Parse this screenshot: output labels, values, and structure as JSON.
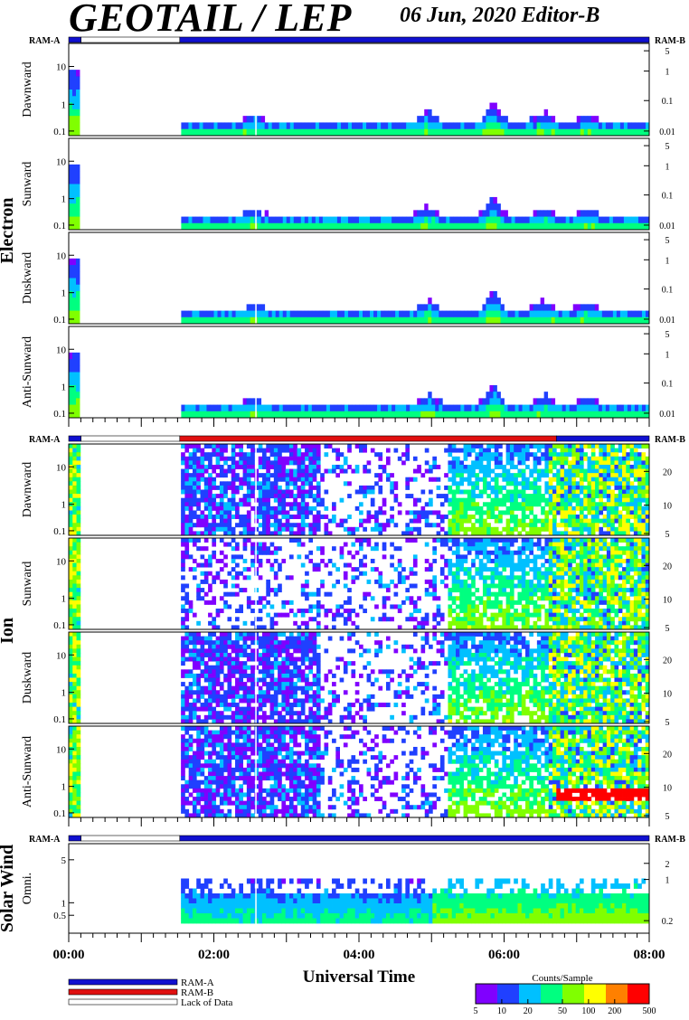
{
  "header": {
    "title": "GEOTAIL / LEP",
    "subtitle": "06 Jun, 2020   Editor-B"
  },
  "labels": {
    "ram_a": "RAM-A",
    "ram_b": "RAM-B",
    "electron": "Electron",
    "ion": "Ion",
    "solar_wind": "Solar Wind",
    "xlabel": "Universal Time",
    "colorbar_title": "Counts/Sample"
  },
  "legend": [
    {
      "label": "RAM-A",
      "color": "#1010d0"
    },
    {
      "label": "RAM-B",
      "color": "#e01010"
    },
    {
      "label": "Lack of Data",
      "color": "#ffffff"
    }
  ],
  "colorbar": {
    "ticks": [
      "5",
      "10",
      "20",
      "50",
      "100",
      "200",
      "500"
    ],
    "colors": [
      "#8000ff",
      "#2040ff",
      "#00c0ff",
      "#00ff80",
      "#80ff00",
      "#ffff00",
      "#ff8000",
      "#ff0000"
    ]
  },
  "chart_data": {
    "type": "heatmap",
    "x_ticks": [
      "00:00",
      "02:00",
      "04:00",
      "06:00",
      "08:00"
    ],
    "x_range_hours": [
      0,
      8
    ],
    "groups": [
      {
        "name": "Electron",
        "status_bar": [
          {
            "start": 0.0,
            "end": 0.17,
            "state": "RAM-A"
          },
          {
            "start": 0.17,
            "end": 1.53,
            "state": "Lack of Data"
          },
          {
            "start": 1.53,
            "end": 8.0,
            "state": "RAM-A"
          }
        ],
        "panels": [
          {
            "name": "Dawnward",
            "left_ticks": [
              "10",
              "1",
              "0.1"
            ],
            "right_ticks": [
              "5",
              "1",
              "0.1",
              "0.01"
            ]
          },
          {
            "name": "Sunward",
            "left_ticks": [
              "10",
              "1",
              "0.1"
            ],
            "right_ticks": [
              "5",
              "1",
              "0.1",
              "0.01"
            ]
          },
          {
            "name": "Duskward",
            "left_ticks": [
              "10",
              "1",
              "0.1"
            ],
            "right_ticks": [
              "5",
              "1",
              "0.1",
              "0.01"
            ]
          },
          {
            "name": "Anti-Sunward",
            "left_ticks": [
              "10",
              "1",
              "0.1"
            ],
            "right_ticks": [
              "5",
              "1",
              "0.1",
              "0.01"
            ]
          }
        ]
      },
      {
        "name": "Ion",
        "status_bar": [
          {
            "start": 0.0,
            "end": 0.17,
            "state": "RAM-A"
          },
          {
            "start": 0.17,
            "end": 1.53,
            "state": "Lack of Data"
          },
          {
            "start": 1.53,
            "end": 6.72,
            "state": "RAM-B"
          },
          {
            "start": 6.72,
            "end": 8.0,
            "state": "RAM-A"
          }
        ],
        "panels": [
          {
            "name": "Dawnward",
            "left_ticks": [
              "10",
              "1",
              "0.1"
            ],
            "right_ticks": [
              "20",
              "10",
              "5"
            ]
          },
          {
            "name": "Sunward",
            "left_ticks": [
              "10",
              "1",
              "0.1"
            ],
            "right_ticks": [
              "20",
              "10",
              "5"
            ]
          },
          {
            "name": "Duskward",
            "left_ticks": [
              "10",
              "1",
              "0.1"
            ],
            "right_ticks": [
              "20",
              "10",
              "5"
            ]
          },
          {
            "name": "Anti-Sunward",
            "left_ticks": [
              "10",
              "1",
              "0.1"
            ],
            "right_ticks": [
              "20",
              "10",
              "5"
            ]
          }
        ]
      },
      {
        "name": "Solar Wind",
        "status_bar": [
          {
            "start": 0.0,
            "end": 0.17,
            "state": "RAM-A"
          },
          {
            "start": 0.17,
            "end": 1.53,
            "state": "Lack of Data"
          },
          {
            "start": 1.53,
            "end": 8.0,
            "state": "RAM-A"
          }
        ],
        "panels": [
          {
            "name": "Omni.",
            "left_ticks": [
              "5",
              "1",
              "0.5"
            ],
            "right_ticks": [
              "2",
              "1",
              "0.2"
            ]
          }
        ]
      }
    ]
  }
}
